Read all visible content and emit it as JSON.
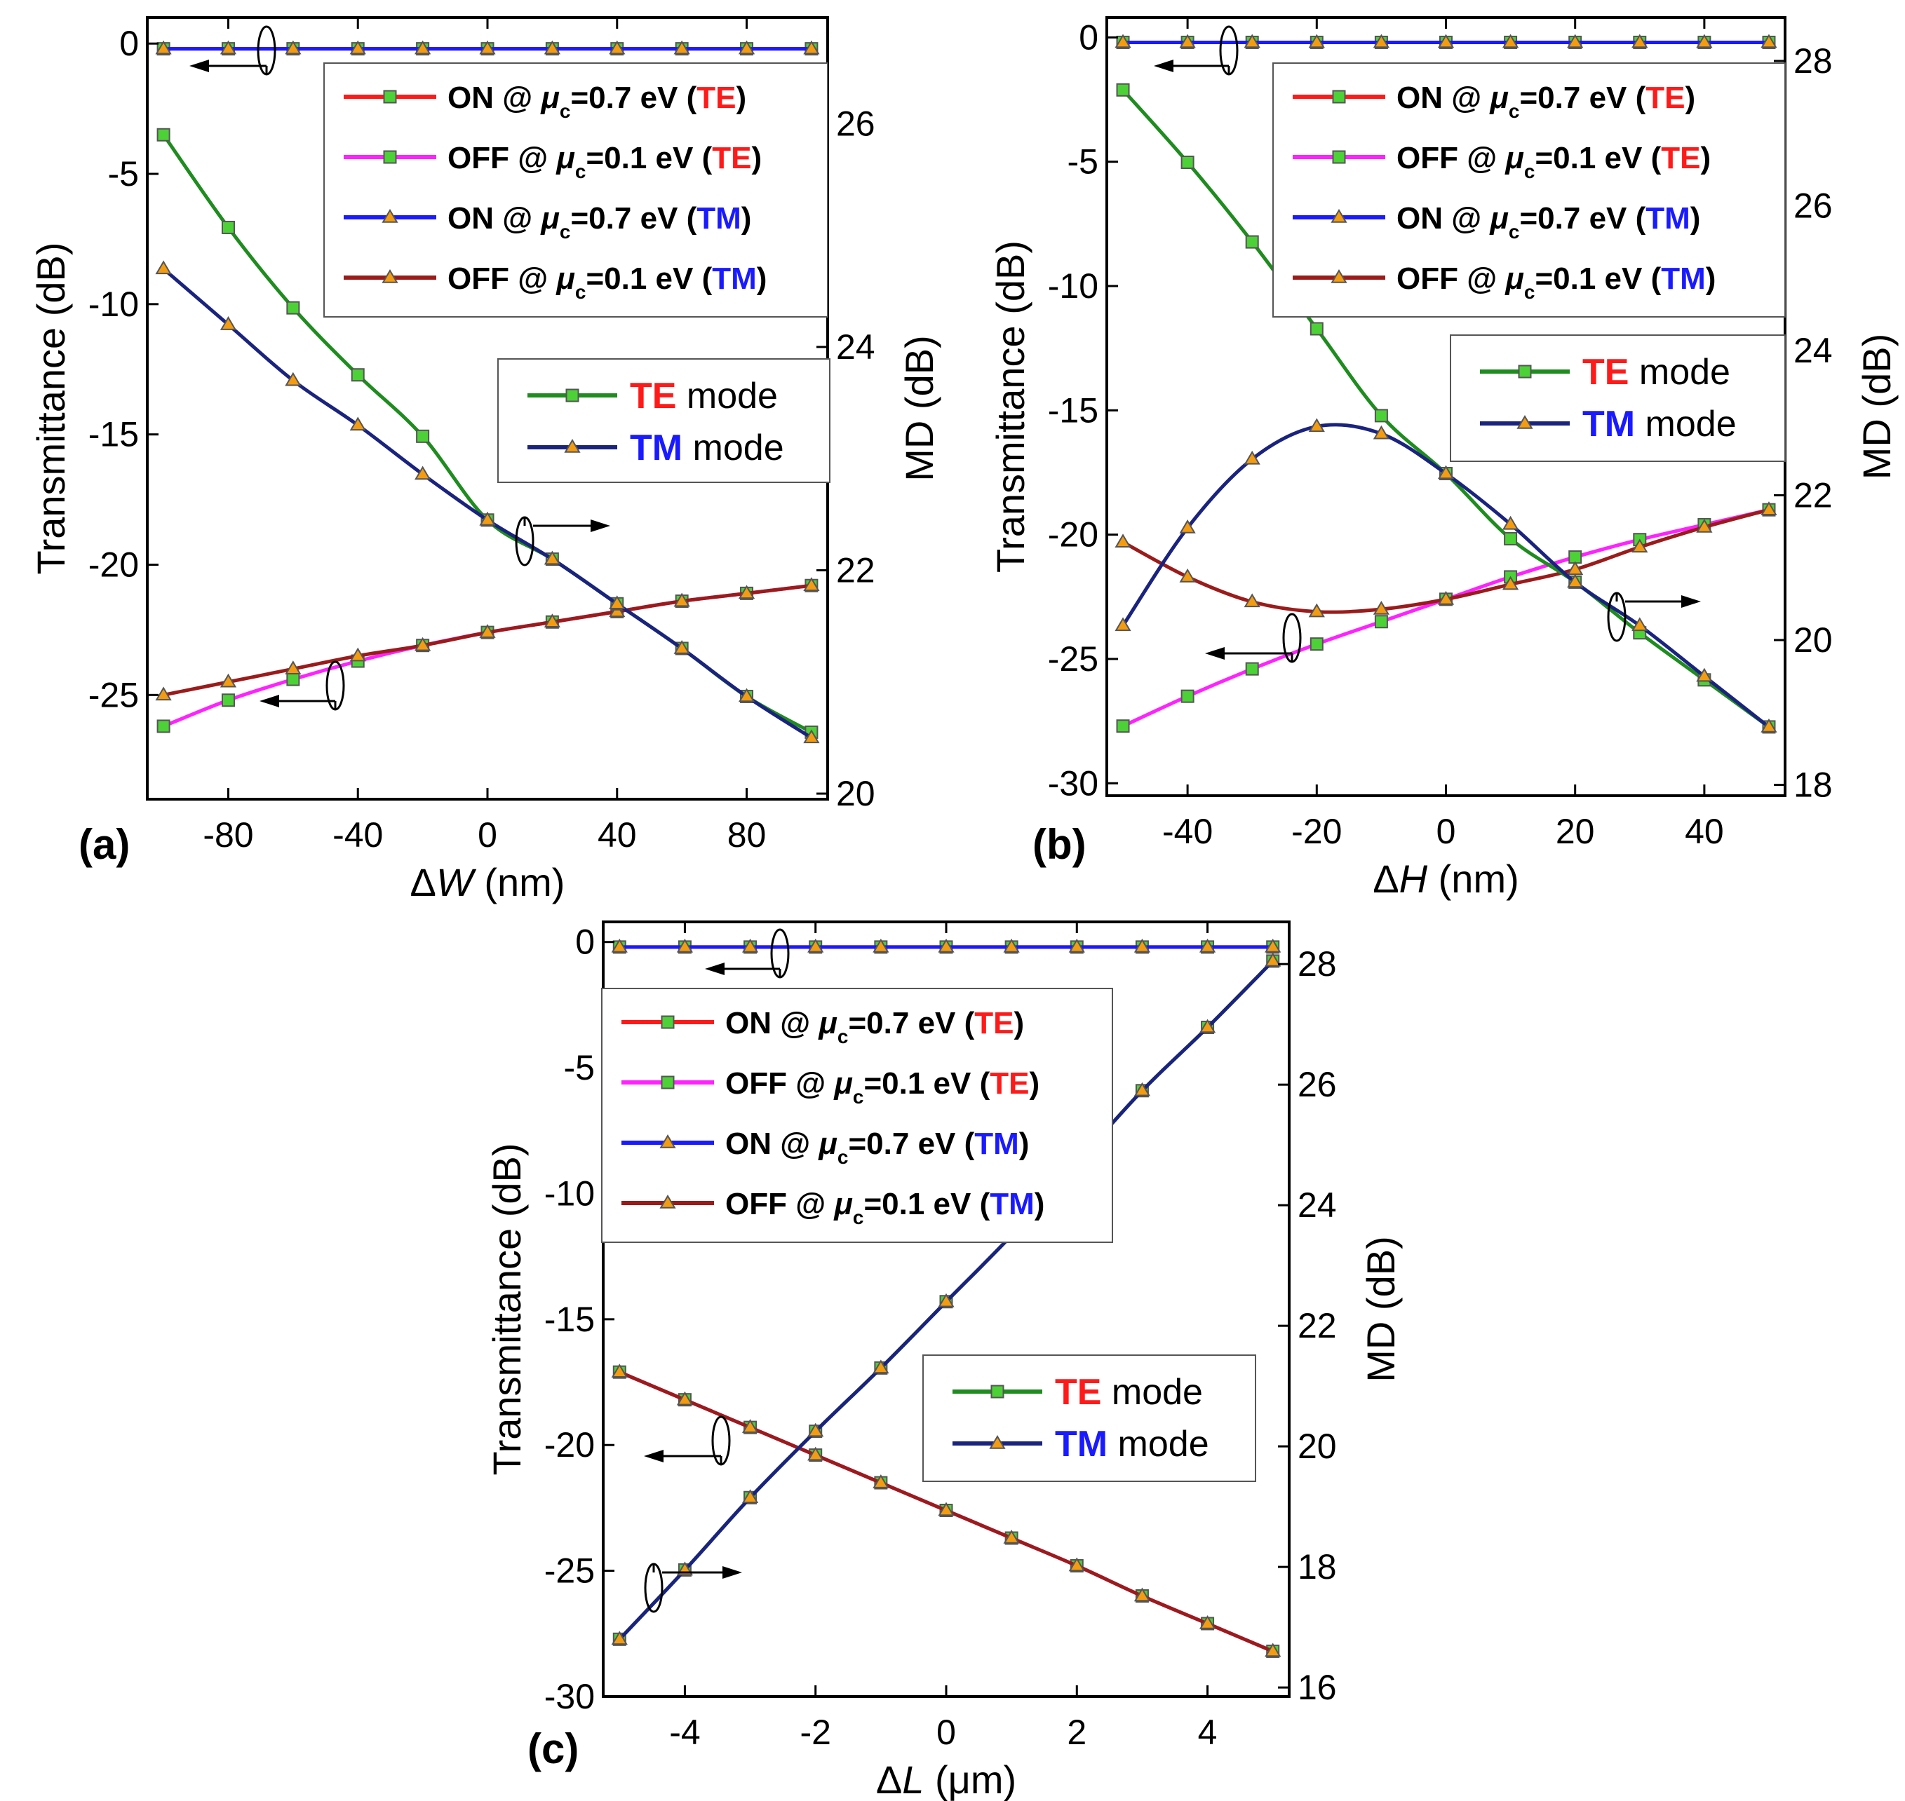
{
  "chart_data": [
    {
      "type": "line",
      "panel_label": "(a)",
      "xlabel_symbol": "W",
      "xlabel_unit": "(nm)",
      "ylabel_left": "Transmittance (dB)",
      "ylabel_right": "MD (dB)",
      "xlim": [
        -105,
        105
      ],
      "ylim_left": [
        -29,
        1
      ],
      "ylim_right": [
        19.95,
        26.95
      ],
      "xticks": [
        -80,
        -40,
        0,
        40,
        80
      ],
      "yticks_left": [
        0,
        -5,
        -10,
        -15,
        -20,
        -25
      ],
      "yticks_right": [
        20,
        22,
        24,
        26
      ],
      "x": [
        -100,
        -80,
        -60,
        -40,
        -20,
        0,
        20,
        40,
        60,
        80,
        100
      ],
      "series": [
        {
          "name": "ON @ μc=0.7 eV (TE)",
          "axis": "left",
          "color": "#ff1a1a",
          "marker": "square",
          "values": [
            -0.2,
            -0.2,
            -0.2,
            -0.2,
            -0.2,
            -0.2,
            -0.2,
            -0.2,
            -0.2,
            -0.2,
            -0.2
          ]
        },
        {
          "name": "OFF @ μc=0.1 eV (TE)",
          "axis": "left",
          "color": "#ff22ff",
          "marker": "square",
          "values": [
            -26.2,
            -25.2,
            -24.4,
            -23.7,
            -23.1,
            -22.6,
            -22.2,
            -21.8,
            -21.4,
            -21.1,
            -20.8
          ]
        },
        {
          "name": "ON @ μc=0.7 eV (TM)",
          "axis": "left",
          "color": "#1a1aff",
          "marker": "triangle",
          "values": [
            -0.2,
            -0.2,
            -0.2,
            -0.2,
            -0.2,
            -0.2,
            -0.2,
            -0.2,
            -0.2,
            -0.2,
            -0.2
          ]
        },
        {
          "name": "OFF @ μc=0.1 eV (TM)",
          "axis": "left",
          "color": "#9b1b1b",
          "marker": "triangle",
          "values": [
            -25.0,
            -24.5,
            -24.0,
            -23.5,
            -23.1,
            -22.6,
            -22.2,
            -21.8,
            -21.4,
            -21.1,
            -20.8
          ]
        },
        {
          "name": "TE mode",
          "axis": "right",
          "color": "#1e8c1e",
          "marker": "square",
          "values": [
            25.9,
            25.07,
            24.35,
            23.75,
            23.2,
            22.45,
            22.1,
            21.7,
            21.3,
            20.87,
            20.55
          ]
        },
        {
          "name": "TM mode",
          "axis": "right",
          "color": "#1a237e",
          "marker": "triangle",
          "values": [
            24.7,
            24.2,
            23.7,
            23.3,
            22.86,
            22.45,
            22.1,
            21.7,
            21.3,
            20.87,
            20.5
          ]
        }
      ],
      "legend1": [
        {
          "pre": "ON @ ",
          "mu": "μ",
          "sub": "c",
          "val": "=0.7 eV (",
          "mode": "TE",
          "post": ")",
          "color": "#ff1a1a",
          "mode_color": "#ff1a1a",
          "marker": "square"
        },
        {
          "pre": "OFF @ ",
          "mu": "μ",
          "sub": "c",
          "val": "=0.1 eV (",
          "mode": "TE",
          "post": ")",
          "color": "#ff22ff",
          "mode_color": "#ff1a1a",
          "marker": "square"
        },
        {
          "pre": "ON @ ",
          "mu": "μ",
          "sub": "c",
          "val": "=0.7 eV (",
          "mode": "TM",
          "post": ")",
          "color": "#1a1aff",
          "mode_color": "#1a1aff",
          "marker": "triangle"
        },
        {
          "pre": "OFF @ ",
          "mu": "μ",
          "sub": "c",
          "val": "=0.1 eV (",
          "mode": "TM",
          "post": ")",
          "color": "#9b1b1b",
          "mode_color": "#1a1aff",
          "marker": "triangle"
        }
      ],
      "legend2": [
        {
          "mode": "TE",
          "word": " mode",
          "color": "#1e8c1e",
          "mode_color": "#ff1a1a",
          "marker": "square"
        },
        {
          "mode": "TM",
          "word": " mode",
          "color": "#1a237e",
          "mode_color": "#1a1aff",
          "marker": "triangle"
        }
      ]
    },
    {
      "type": "line",
      "panel_label": "(b)",
      "xlabel_symbol": "H",
      "xlabel_unit": "(nm)",
      "ylabel_left": "Transmittance (dB)",
      "ylabel_right": "MD (dB)",
      "xlim": [
        -52.5,
        52.5
      ],
      "ylim_left": [
        -30.5,
        0.8
      ],
      "ylim_right": [
        17.85,
        28.6
      ],
      "xticks": [
        -40,
        -20,
        0,
        20,
        40
      ],
      "yticks_left": [
        0,
        -5,
        -10,
        -15,
        -20,
        -25,
        -30
      ],
      "yticks_right": [
        18,
        20,
        22,
        24,
        26,
        28
      ],
      "x": [
        -50,
        -40,
        -30,
        -20,
        -10,
        0,
        10,
        20,
        30,
        40,
        50
      ],
      "series": [
        {
          "name": "ON @ μc=0.7 eV (TE)",
          "axis": "left",
          "color": "#ff1a1a",
          "marker": "square",
          "values": [
            -0.2,
            -0.2,
            -0.2,
            -0.2,
            -0.2,
            -0.2,
            -0.2,
            -0.2,
            -0.2,
            -0.2,
            -0.2
          ]
        },
        {
          "name": "OFF @ μc=0.1 eV (TE)",
          "axis": "left",
          "color": "#ff22ff",
          "marker": "square",
          "values": [
            -27.7,
            -26.5,
            -25.4,
            -24.4,
            -23.5,
            -22.6,
            -21.7,
            -20.9,
            -20.2,
            -19.6,
            -19.0
          ]
        },
        {
          "name": "ON @ μc=0.7 eV (TM)",
          "axis": "left",
          "color": "#1a1aff",
          "marker": "triangle",
          "values": [
            -0.2,
            -0.2,
            -0.2,
            -0.2,
            -0.2,
            -0.2,
            -0.2,
            -0.2,
            -0.2,
            -0.2,
            -0.2
          ]
        },
        {
          "name": "OFF @ μc=0.1 eV (TM)",
          "axis": "left",
          "color": "#9b1b1b",
          "marker": "triangle",
          "values": [
            -20.3,
            -21.7,
            -22.7,
            -23.1,
            -23.0,
            -22.6,
            -22.0,
            -21.4,
            -20.5,
            -19.7,
            -19.0
          ]
        },
        {
          "name": "TE mode",
          "axis": "right",
          "color": "#1e8c1e",
          "marker": "square",
          "values": [
            27.6,
            26.6,
            25.5,
            24.3,
            23.1,
            22.3,
            21.4,
            20.8,
            20.1,
            19.45,
            18.8
          ]
        },
        {
          "name": "TM mode",
          "axis": "right",
          "color": "#1a237e",
          "marker": "triangle",
          "values": [
            20.2,
            21.55,
            22.5,
            22.95,
            22.85,
            22.3,
            21.6,
            20.8,
            20.2,
            19.5,
            18.8
          ]
        }
      ],
      "legend1": [
        {
          "pre": "ON @ ",
          "mu": "μ",
          "sub": "c",
          "val": "=0.7 eV (",
          "mode": "TE",
          "post": ")",
          "color": "#ff1a1a",
          "mode_color": "#ff1a1a",
          "marker": "square"
        },
        {
          "pre": "OFF @ ",
          "mu": "μ",
          "sub": "c",
          "val": "=0.1 eV (",
          "mode": "TE",
          "post": ")",
          "color": "#ff22ff",
          "mode_color": "#ff1a1a",
          "marker": "square"
        },
        {
          "pre": "ON @ ",
          "mu": "μ",
          "sub": "c",
          "val": "=0.7 eV (",
          "mode": "TM",
          "post": ")",
          "color": "#1a1aff",
          "mode_color": "#1a1aff",
          "marker": "triangle"
        },
        {
          "pre": "OFF @ ",
          "mu": "μ",
          "sub": "c",
          "val": "=0.1 eV (",
          "mode": "TM",
          "post": ")",
          "color": "#9b1b1b",
          "mode_color": "#1a1aff",
          "marker": "triangle"
        }
      ],
      "legend2": [
        {
          "mode": "TE",
          "word": " mode",
          "color": "#1e8c1e",
          "mode_color": "#ff1a1a",
          "marker": "square"
        },
        {
          "mode": "TM",
          "word": " mode",
          "color": "#1a237e",
          "mode_color": "#1a1aff",
          "marker": "triangle"
        }
      ]
    },
    {
      "type": "line",
      "panel_label": "(c)",
      "xlabel_symbol": "L",
      "xlabel_unit": "(μm)",
      "ylabel_left": "Transmittance (dB)",
      "ylabel_right": "MD (dB)",
      "xlim": [
        -5.25,
        5.25
      ],
      "ylim_left": [
        -30,
        0.8
      ],
      "ylim_right": [
        15.85,
        28.7
      ],
      "xticks": [
        -4,
        -2,
        0,
        2,
        4
      ],
      "yticks_left": [
        0,
        -5,
        -10,
        -15,
        -20,
        -25,
        -30
      ],
      "yticks_right": [
        16,
        18,
        20,
        22,
        24,
        26,
        28
      ],
      "x": [
        -5,
        -4,
        -3,
        -2,
        -1,
        0,
        1,
        2,
        3,
        4,
        5
      ],
      "series": [
        {
          "name": "ON @ μc=0.7 eV (TE)",
          "axis": "left",
          "color": "#ff1a1a",
          "marker": "square",
          "values": [
            -0.2,
            -0.2,
            -0.2,
            -0.2,
            -0.2,
            -0.2,
            -0.2,
            -0.2,
            -0.2,
            -0.2,
            -0.2
          ]
        },
        {
          "name": "OFF @ μc=0.1 eV (TE)",
          "axis": "left",
          "color": "#ff22ff",
          "marker": "square",
          "values": [
            -17.1,
            -18.2,
            -19.3,
            -20.4,
            -21.5,
            -22.6,
            -23.7,
            -24.8,
            -26.0,
            -27.1,
            -28.2
          ]
        },
        {
          "name": "ON @ μc=0.7 eV (TM)",
          "axis": "left",
          "color": "#1a1aff",
          "marker": "triangle",
          "values": [
            -0.2,
            -0.2,
            -0.2,
            -0.2,
            -0.2,
            -0.2,
            -0.2,
            -0.2,
            -0.2,
            -0.2,
            -0.2
          ]
        },
        {
          "name": "OFF @ μc=0.1 eV (TM)",
          "axis": "left",
          "color": "#9b1b1b",
          "marker": "triangle",
          "values": [
            -17.1,
            -18.2,
            -19.3,
            -20.4,
            -21.5,
            -22.6,
            -23.7,
            -24.8,
            -26.0,
            -27.1,
            -28.2
          ]
        },
        {
          "name": "TE mode",
          "axis": "right",
          "color": "#1e8c1e",
          "marker": "square",
          "values": [
            16.8,
            17.95,
            19.15,
            20.25,
            21.3,
            22.4,
            23.5,
            24.7,
            25.9,
            26.95,
            28.05
          ]
        },
        {
          "name": "TM mode",
          "axis": "right",
          "color": "#1a237e",
          "marker": "triangle",
          "values": [
            16.8,
            17.95,
            19.15,
            20.25,
            21.3,
            22.4,
            23.5,
            24.7,
            25.9,
            26.95,
            28.05
          ]
        }
      ],
      "legend1": [
        {
          "pre": "ON @ ",
          "mu": "μ",
          "sub": "c",
          "val": "=0.7 eV (",
          "mode": "TE",
          "post": ")",
          "color": "#ff1a1a",
          "mode_color": "#ff1a1a",
          "marker": "square"
        },
        {
          "pre": "OFF @ ",
          "mu": "μ",
          "sub": "c",
          "val": "=0.1 eV (",
          "mode": "TE",
          "post": ")",
          "color": "#ff22ff",
          "mode_color": "#ff1a1a",
          "marker": "square"
        },
        {
          "pre": "ON @ ",
          "mu": "μ",
          "sub": "c",
          "val": "=0.7 eV (",
          "mode": "TM",
          "post": ")",
          "color": "#1a1aff",
          "mode_color": "#1a1aff",
          "marker": "triangle"
        },
        {
          "pre": "OFF @ ",
          "mu": "μ",
          "sub": "c",
          "val": "=0.1 eV (",
          "mode": "TM",
          "post": ")",
          "color": "#9b1b1b",
          "mode_color": "#1a1aff",
          "marker": "triangle"
        }
      ],
      "legend2": [
        {
          "mode": "TE",
          "word": " mode",
          "color": "#1e8c1e",
          "mode_color": "#ff1a1a",
          "marker": "square"
        },
        {
          "mode": "TM",
          "word": " mode",
          "color": "#1a237e",
          "mode_color": "#1a1aff",
          "marker": "triangle"
        }
      ]
    }
  ],
  "marker_colors": {
    "square": "#4cd137",
    "triangle": "#f39c12",
    "edge": "#555555"
  },
  "delta_symbol": "Δ"
}
